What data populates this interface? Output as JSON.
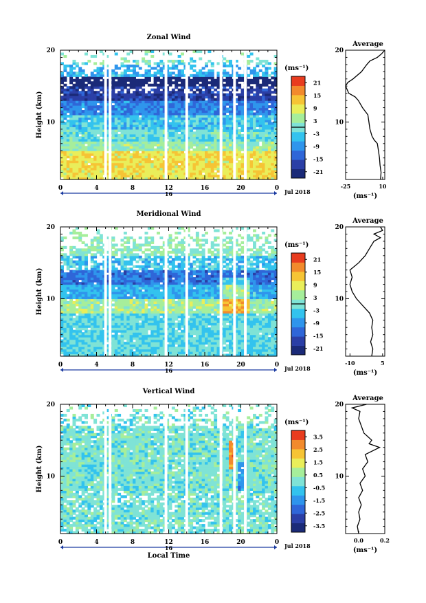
{
  "colors": {
    "scale": [
      "#1b2a78",
      "#2b3fa6",
      "#2f66d8",
      "#2f95ec",
      "#33c3ee",
      "#7fe3d6",
      "#a6ee9b",
      "#e9ee5a",
      "#f6c435",
      "#f28a2c",
      "#e83c1f"
    ]
  },
  "chart_data": [
    {
      "type": "heatmap",
      "title": "Zonal Wind",
      "ylabel": "Height (km)",
      "xlabel": "",
      "xlim": [
        0,
        24
      ],
      "ylim": [
        2,
        20
      ],
      "x_ticks": [
        "0",
        "4",
        "8",
        "12",
        "16",
        "20",
        "0"
      ],
      "x_tick_values": [
        0,
        4,
        8,
        12,
        16,
        20,
        24
      ],
      "y_ticks": [
        "10",
        "20"
      ],
      "y_tick_values": [
        10,
        20
      ],
      "date_label": "16",
      "month_label": "Jul 2018",
      "colorbar": {
        "unit": "(ms⁻¹)",
        "labels": [
          "21",
          "15",
          "9",
          "3",
          "-3",
          "-9",
          "-15",
          "-21"
        ],
        "values": [
          21,
          15,
          9,
          3,
          -3,
          -9,
          -15,
          -21
        ],
        "range": [
          -24,
          24
        ],
        "zero_line": true
      },
      "gaps_hours": [
        5.0,
        5.5,
        11.7,
        14.0,
        17.8,
        19.3,
        20.5
      ],
      "profile": {
        "title": "Average",
        "xlim": [
          -25,
          12
        ],
        "x_ticks": [
          "-25",
          "10"
        ],
        "x_tick_values": [
          -25,
          10
        ],
        "xlabel": "(ms⁻¹)",
        "points": [
          {
            "h": 2.0,
            "v": 8.0
          },
          {
            "h": 3.0,
            "v": 8.5
          },
          {
            "h": 4.0,
            "v": 7.5
          },
          {
            "h": 5.0,
            "v": 7.0
          },
          {
            "h": 6.0,
            "v": 6.0
          },
          {
            "h": 7.0,
            "v": 5.0
          },
          {
            "h": 7.5,
            "v": 2.0
          },
          {
            "h": 8.0,
            "v": 0.0
          },
          {
            "h": 9.0,
            "v": -2.0
          },
          {
            "h": 10.0,
            "v": -3.0
          },
          {
            "h": 11.0,
            "v": -4.0
          },
          {
            "h": 12.0,
            "v": -9.0
          },
          {
            "h": 13.0,
            "v": -13.0
          },
          {
            "h": 13.5,
            "v": -16.0
          },
          {
            "h": 14.0,
            "v": -22.0
          },
          {
            "h": 15.0,
            "v": -25.0
          },
          {
            "h": 15.5,
            "v": -23.0
          },
          {
            "h": 16.0,
            "v": -18.0
          },
          {
            "h": 17.0,
            "v": -10.0
          },
          {
            "h": 18.0,
            "v": -5.0
          },
          {
            "h": 18.5,
            "v": -2.0
          },
          {
            "h": 19.0,
            "v": 5.0
          },
          {
            "h": 19.5,
            "v": 9.0
          },
          {
            "h": 20.0,
            "v": 12.0
          }
        ]
      }
    },
    {
      "type": "heatmap",
      "title": "Meridional Wind",
      "ylabel": "Height (km)",
      "xlabel": "",
      "xlim": [
        0,
        24
      ],
      "ylim": [
        2,
        20
      ],
      "x_ticks": [
        "0",
        "4",
        "8",
        "12",
        "16",
        "20",
        "0"
      ],
      "x_tick_values": [
        0,
        4,
        8,
        12,
        16,
        20,
        24
      ],
      "y_ticks": [
        "10",
        "20"
      ],
      "y_tick_values": [
        10,
        20
      ],
      "date_label": "16",
      "month_label": "Jul 2018",
      "colorbar": {
        "unit": "(ms⁻¹)",
        "labels": [
          "21",
          "15",
          "9",
          "3",
          "-3",
          "-9",
          "-15",
          "-21"
        ],
        "values": [
          21,
          15,
          9,
          3,
          -3,
          -9,
          -15,
          -21
        ],
        "range": [
          -24,
          24
        ],
        "zero_line": true
      },
      "gaps_hours": [
        5.0,
        5.5,
        11.7,
        14.0,
        17.8,
        19.3,
        20.5
      ],
      "profile": {
        "title": "Average",
        "xlim": [
          -12,
          6
        ],
        "x_ticks": [
          "-10",
          "5"
        ],
        "x_tick_values": [
          -10,
          5
        ],
        "xlabel": "(ms⁻¹)",
        "points": [
          {
            "h": 2.0,
            "v": 0.0
          },
          {
            "h": 3.0,
            "v": 0.5
          },
          {
            "h": 4.0,
            "v": -0.5
          },
          {
            "h": 5.0,
            "v": 0.5
          },
          {
            "h": 6.0,
            "v": 0.0
          },
          {
            "h": 7.0,
            "v": 0.5
          },
          {
            "h": 8.0,
            "v": -1.0
          },
          {
            "h": 9.0,
            "v": -4.0
          },
          {
            "h": 10.0,
            "v": -7.0
          },
          {
            "h": 11.0,
            "v": -9.0
          },
          {
            "h": 12.0,
            "v": -10.0
          },
          {
            "h": 13.0,
            "v": -9.0
          },
          {
            "h": 14.0,
            "v": -10.0
          },
          {
            "h": 15.0,
            "v": -6.0
          },
          {
            "h": 16.0,
            "v": -3.0
          },
          {
            "h": 17.0,
            "v": -1.0
          },
          {
            "h": 18.0,
            "v": 1.0
          },
          {
            "h": 18.5,
            "v": 4.0
          },
          {
            "h": 19.0,
            "v": 1.0
          },
          {
            "h": 19.5,
            "v": 5.0
          },
          {
            "h": 20.0,
            "v": 4.0
          }
        ]
      }
    },
    {
      "type": "heatmap",
      "title": "Vertical Wind",
      "ylabel": "Height (km)",
      "xlabel": "Local Time",
      "xlim": [
        0,
        24
      ],
      "ylim": [
        2,
        20
      ],
      "x_ticks": [
        "0",
        "4",
        "8",
        "12",
        "16",
        "20",
        "0"
      ],
      "x_tick_values": [
        0,
        4,
        8,
        12,
        16,
        20,
        24
      ],
      "y_ticks": [
        "10",
        "20"
      ],
      "y_tick_values": [
        10,
        20
      ],
      "date_label": "16",
      "month_label": "Jul 2018",
      "colorbar": {
        "unit": "(ms⁻¹)",
        "labels": [
          "3.5",
          "2.5",
          "1.5",
          "0.5",
          "-0.5",
          "-1.5",
          "-2.5",
          "-3.5"
        ],
        "values": [
          3.5,
          2.5,
          1.5,
          0.5,
          -0.5,
          -1.5,
          -2.5,
          -3.5
        ],
        "range": [
          -4,
          4
        ],
        "zero_line": false
      },
      "gaps_hours": [
        5.0,
        5.5,
        11.7,
        14.0,
        17.8,
        19.3,
        20.5
      ],
      "profile": {
        "title": "Average",
        "xlim": [
          -0.1,
          0.2
        ],
        "x_ticks": [
          "0.0",
          "0.2"
        ],
        "x_tick_values": [
          0.0,
          0.2
        ],
        "xlabel": "(ms⁻¹)",
        "points": [
          {
            "h": 2.0,
            "v": 0.0
          },
          {
            "h": 3.0,
            "v": -0.01
          },
          {
            "h": 4.0,
            "v": 0.01
          },
          {
            "h": 5.0,
            "v": 0.0
          },
          {
            "h": 6.0,
            "v": 0.02
          },
          {
            "h": 7.0,
            "v": 0.0
          },
          {
            "h": 8.0,
            "v": 0.03
          },
          {
            "h": 9.0,
            "v": 0.01
          },
          {
            "h": 10.0,
            "v": 0.05
          },
          {
            "h": 11.0,
            "v": 0.03
          },
          {
            "h": 12.0,
            "v": 0.07
          },
          {
            "h": 13.0,
            "v": 0.05
          },
          {
            "h": 14.0,
            "v": 0.16
          },
          {
            "h": 14.5,
            "v": 0.08
          },
          {
            "h": 15.0,
            "v": 0.1
          },
          {
            "h": 16.0,
            "v": 0.04
          },
          {
            "h": 17.0,
            "v": 0.02
          },
          {
            "h": 18.0,
            "v": 0.0
          },
          {
            "h": 19.0,
            "v": 0.01
          },
          {
            "h": 19.5,
            "v": -0.05
          },
          {
            "h": 20.0,
            "v": 0.06
          }
        ]
      }
    }
  ]
}
